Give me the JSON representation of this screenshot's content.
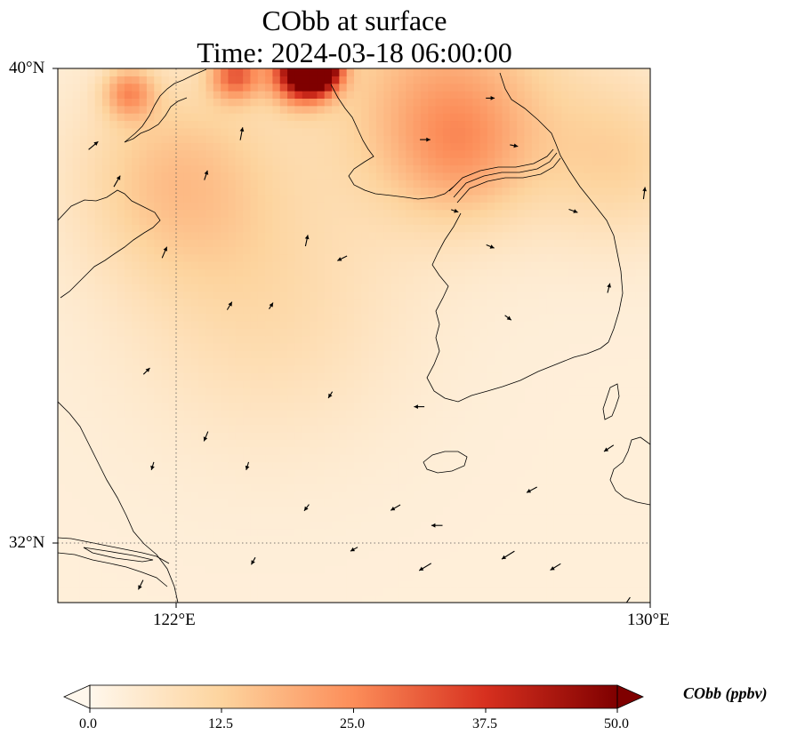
{
  "title": {
    "line1": "CObb at surface",
    "line2": "Time: 2024-03-18 06:00:00"
  },
  "axes": {
    "lat_ticks": [
      "40°N",
      "32°N"
    ],
    "lon_ticks": [
      "122°E",
      "130°E"
    ],
    "lon_range": [
      120,
      130
    ],
    "lat_range": [
      31,
      40
    ],
    "gridlines": "dotted"
  },
  "colorbar": {
    "label": "CObb (ppbv)",
    "ticks": [
      "0.0",
      "12.5",
      "25.0",
      "37.5",
      "50.0"
    ],
    "range": [
      0,
      50
    ],
    "extend": "both",
    "colormap": "OrRd",
    "colors": [
      "#fff7ec",
      "#fdd49e",
      "#fc8d59",
      "#d7301f",
      "#7f0000"
    ]
  },
  "chart_data": {
    "type": "heatmap",
    "variable": "CObb",
    "units": "ppbv",
    "level": "surface",
    "time": "2024-03-18 06:00:00",
    "background_value": 3,
    "features": [
      {
        "lon": 122.0,
        "lat": 38.2,
        "value": 12,
        "spread": 1.2
      },
      {
        "lon": 126.5,
        "lat": 39.6,
        "value": 15,
        "spread": 1.4
      },
      {
        "lon": 126.8,
        "lat": 38.6,
        "value": 10,
        "spread": 0.8
      },
      {
        "lon": 129.5,
        "lat": 38.5,
        "value": 9,
        "spread": 1.0
      },
      {
        "lon": 123.5,
        "lat": 36.0,
        "value": 7,
        "spread": 1.6
      },
      {
        "lon": 121.2,
        "lat": 39.6,
        "value": 18,
        "spread": 0.3
      },
      {
        "lon": 123.0,
        "lat": 39.9,
        "value": 25,
        "spread": 0.3
      },
      {
        "lon": 124.1,
        "lat": 39.95,
        "value": 45,
        "spread": 0.35
      },
      {
        "lon": 124.4,
        "lat": 40.0,
        "value": 50,
        "spread": 0.25
      }
    ],
    "wind_vectors": [
      {
        "lon": 120.6,
        "lat": 38.7,
        "u": 1.2,
        "v": 1.0
      },
      {
        "lon": 121.0,
        "lat": 38.1,
        "u": 0.8,
        "v": 1.4
      },
      {
        "lon": 121.8,
        "lat": 36.9,
        "u": 0.6,
        "v": 1.4
      },
      {
        "lon": 121.5,
        "lat": 34.9,
        "u": 0.8,
        "v": 0.8
      },
      {
        "lon": 123.1,
        "lat": 38.9,
        "u": 0.3,
        "v": 1.6
      },
      {
        "lon": 122.5,
        "lat": 38.2,
        "u": 0.4,
        "v": 1.2
      },
      {
        "lon": 124.2,
        "lat": 37.1,
        "u": 0.3,
        "v": 1.4
      },
      {
        "lon": 122.9,
        "lat": 36.0,
        "u": 0.6,
        "v": 1.0
      },
      {
        "lon": 123.6,
        "lat": 36.0,
        "u": 0.5,
        "v": 0.8
      },
      {
        "lon": 124.8,
        "lat": 36.8,
        "u": -1.2,
        "v": -0.6
      },
      {
        "lon": 126.2,
        "lat": 38.8,
        "u": 1.3,
        "v": 0.0
      },
      {
        "lon": 127.3,
        "lat": 39.5,
        "u": 1.1,
        "v": 0.0
      },
      {
        "lon": 127.7,
        "lat": 38.7,
        "u": 1.0,
        "v": -0.2
      },
      {
        "lon": 126.7,
        "lat": 37.6,
        "u": 0.9,
        "v": -0.3
      },
      {
        "lon": 127.3,
        "lat": 37.0,
        "u": 1.0,
        "v": -0.4
      },
      {
        "lon": 128.7,
        "lat": 37.6,
        "u": 1.1,
        "v": -0.4
      },
      {
        "lon": 129.3,
        "lat": 36.3,
        "u": 0.3,
        "v": 1.2
      },
      {
        "lon": 127.6,
        "lat": 35.8,
        "u": 0.8,
        "v": -0.6
      },
      {
        "lon": 126.1,
        "lat": 34.3,
        "u": -1.3,
        "v": 0.0
      },
      {
        "lon": 124.6,
        "lat": 34.5,
        "u": -0.5,
        "v": -0.8
      },
      {
        "lon": 123.2,
        "lat": 33.3,
        "u": -0.3,
        "v": -1.0
      },
      {
        "lon": 122.5,
        "lat": 33.8,
        "u": -0.5,
        "v": -1.2
      },
      {
        "lon": 121.6,
        "lat": 33.3,
        "u": -0.3,
        "v": -1.0
      },
      {
        "lon": 124.2,
        "lat": 32.6,
        "u": -0.6,
        "v": -0.8
      },
      {
        "lon": 125.7,
        "lat": 32.6,
        "u": -1.2,
        "v": -0.7
      },
      {
        "lon": 126.4,
        "lat": 32.3,
        "u": -1.4,
        "v": 0.0
      },
      {
        "lon": 128.0,
        "lat": 32.9,
        "u": -1.3,
        "v": -0.7
      },
      {
        "lon": 127.6,
        "lat": 31.8,
        "u": -1.6,
        "v": -1.0
      },
      {
        "lon": 128.4,
        "lat": 31.6,
        "u": -1.3,
        "v": -0.8
      },
      {
        "lon": 126.2,
        "lat": 31.6,
        "u": -1.5,
        "v": -0.9
      },
      {
        "lon": 125.0,
        "lat": 31.9,
        "u": -0.9,
        "v": -0.5
      },
      {
        "lon": 123.3,
        "lat": 31.7,
        "u": -0.5,
        "v": -0.9
      },
      {
        "lon": 121.4,
        "lat": 31.3,
        "u": -0.6,
        "v": -1.2
      },
      {
        "lon": 129.6,
        "lat": 31.0,
        "u": -0.9,
        "v": -1.3
      },
      {
        "lon": 129.3,
        "lat": 33.6,
        "u": -1.2,
        "v": -0.8
      },
      {
        "lon": 129.9,
        "lat": 37.9,
        "u": 0.2,
        "v": 1.5
      }
    ],
    "contour_overlay": "coastlines"
  }
}
